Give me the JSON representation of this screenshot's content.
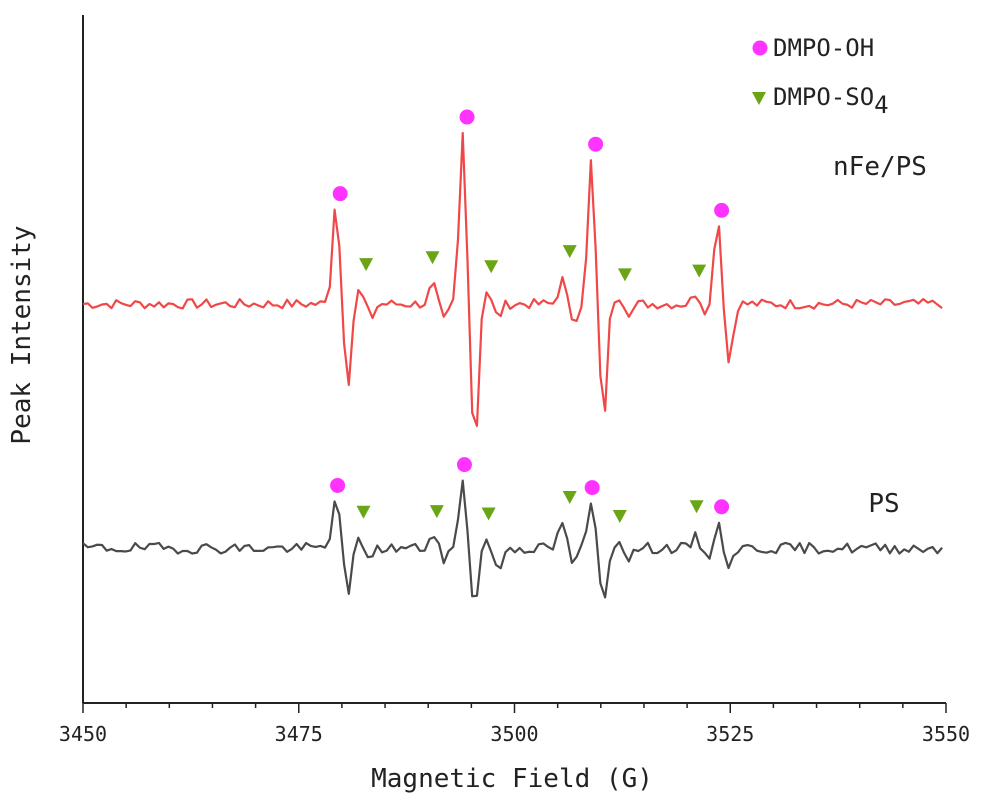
{
  "chart_data": {
    "type": "line",
    "xlabel": "Magnetic Field (G)",
    "ylabel": "Peak Intensity",
    "xlim": [
      3450,
      3550
    ],
    "x_ticks": [
      "3450",
      "3475",
      "3500",
      "3525",
      "3550"
    ],
    "x_minor_step": 5,
    "grid": false,
    "legend_position": "top-right",
    "legend": [
      {
        "label": "DMPO-OH",
        "marker": "circle",
        "color": "#ff33ff"
      },
      {
        "label": "DMPO-SO",
        "sub": "4",
        "marker": "triangle-down",
        "color": "#6aa516"
      }
    ],
    "series": [
      {
        "label": "nFe/PS",
        "color": "#f04848",
        "baseline": 0.58,
        "scale": 0.32,
        "noise_seed": 7,
        "noise_amp": 0.045,
        "peaks": [
          {
            "x": 3479.8,
            "up": 0.95,
            "down": 0.72
          },
          {
            "x": 3482.5,
            "up": 0.12,
            "down": 0.12
          },
          {
            "x": 3491.0,
            "up": 0.18,
            "down": 0.16
          },
          {
            "x": 3494.5,
            "up": 1.55,
            "down": 1.35
          },
          {
            "x": 3497.2,
            "up": 0.12,
            "down": 0.12
          },
          {
            "x": 3506.0,
            "up": 0.22,
            "down": 0.15
          },
          {
            "x": 3509.4,
            "up": 1.3,
            "down": 1.08
          },
          {
            "x": 3512.5,
            "up": 0.08,
            "down": 0.08
          },
          {
            "x": 3521.5,
            "up": 0.1,
            "down": 0.08
          },
          {
            "x": 3524.0,
            "up": 0.82,
            "down": 0.55
          }
        ],
        "oh_markers": [
          3479.8,
          3494.5,
          3509.4,
          3524.0
        ],
        "so4_markers": [
          3482.8,
          3490.5,
          3497.3,
          3506.4,
          3512.8,
          3521.4
        ]
      },
      {
        "label": "PS",
        "color": "#4a4a4a",
        "baseline": 0.225,
        "scale": 0.26,
        "noise_seed": 19,
        "noise_amp": 0.06,
        "peaks": [
          {
            "x": 3479.8,
            "up": 0.62,
            "down": 0.52
          },
          {
            "x": 3482.5,
            "up": 0.08,
            "down": 0.1
          },
          {
            "x": 3491.0,
            "up": 0.14,
            "down": 0.12
          },
          {
            "x": 3494.5,
            "up": 0.78,
            "down": 0.68
          },
          {
            "x": 3497.2,
            "up": 0.1,
            "down": 0.28
          },
          {
            "x": 3506.0,
            "up": 0.3,
            "down": 0.18
          },
          {
            "x": 3509.4,
            "up": 0.52,
            "down": 0.62
          },
          {
            "x": 3512.5,
            "up": 0.08,
            "down": 0.1
          },
          {
            "x": 3521.5,
            "up": 0.12,
            "down": 0.12
          },
          {
            "x": 3524.0,
            "up": 0.26,
            "down": 0.18
          }
        ],
        "oh_markers": [
          3479.5,
          3494.2,
          3509.0,
          3524.0
        ],
        "so4_markers": [
          3482.5,
          3491.0,
          3497.0,
          3506.4,
          3512.2,
          3521.1
        ]
      }
    ]
  }
}
